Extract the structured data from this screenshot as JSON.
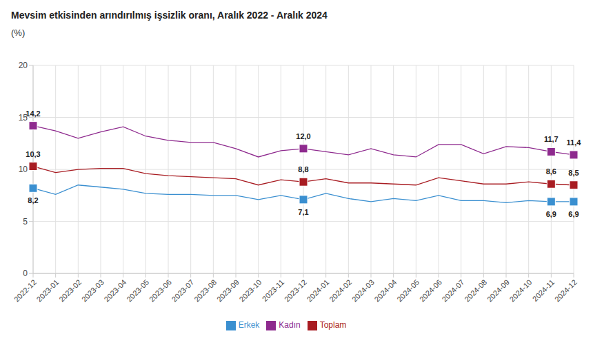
{
  "chart_data": {
    "type": "line",
    "title": "Mevsim etkisinden arındırılmış işsizlik oranı, Aralık 2022 - Aralık 2024",
    "ylabel": "(%)",
    "categories": [
      "2022-12",
      "2023-01",
      "2023-02",
      "2023-03",
      "2023-04",
      "2023-05",
      "2023-06",
      "2023-07",
      "2023-08",
      "2023-09",
      "2023-10",
      "2023-11",
      "2023-12",
      "2024-01",
      "2024-02",
      "2024-03",
      "2024-04",
      "2024-05",
      "2024-06",
      "2024-07",
      "2024-08",
      "2024-09",
      "2024-10",
      "2024-11",
      "2024-12"
    ],
    "series": [
      {
        "name": "Toplam",
        "color": "#a81c22",
        "marker": "square",
        "values": [
          10.3,
          9.7,
          10.0,
          10.1,
          10.1,
          9.6,
          9.4,
          9.3,
          9.2,
          9.1,
          8.5,
          9.0,
          8.8,
          9.1,
          8.7,
          8.7,
          8.6,
          8.5,
          9.2,
          8.9,
          8.6,
          8.6,
          8.8,
          8.6,
          8.5
        ],
        "value_labels": [
          "10,3",
          null,
          null,
          null,
          null,
          null,
          null,
          null,
          null,
          null,
          null,
          null,
          "8,8",
          null,
          null,
          null,
          null,
          null,
          null,
          null,
          null,
          null,
          null,
          "8,6",
          "8,5"
        ]
      },
      {
        "name": "Erkek",
        "color": "#3a8fd0",
        "marker": "square",
        "values": [
          8.2,
          7.6,
          8.5,
          8.3,
          8.1,
          7.7,
          7.6,
          7.6,
          7.5,
          7.5,
          7.1,
          7.5,
          7.1,
          7.7,
          7.2,
          6.9,
          7.2,
          7.0,
          7.5,
          7.0,
          7.0,
          6.8,
          7.0,
          6.9,
          6.9
        ],
        "value_labels": [
          "8,2",
          null,
          null,
          null,
          null,
          null,
          null,
          null,
          null,
          null,
          null,
          null,
          "7,1",
          null,
          null,
          null,
          null,
          null,
          null,
          null,
          null,
          null,
          null,
          "6,9",
          "6,9"
        ]
      },
      {
        "name": "Kadın",
        "color": "#8e2a8e",
        "marker": "square",
        "values": [
          14.2,
          13.7,
          13.0,
          13.6,
          14.1,
          13.2,
          12.8,
          12.6,
          12.6,
          12.0,
          11.2,
          11.8,
          12.0,
          11.7,
          11.4,
          12.0,
          11.4,
          11.2,
          12.4,
          12.4,
          11.5,
          12.2,
          12.1,
          11.7,
          11.4
        ],
        "value_labels": [
          "14,2",
          null,
          null,
          null,
          null,
          null,
          null,
          null,
          null,
          null,
          null,
          null,
          "12,0",
          null,
          null,
          null,
          null,
          null,
          null,
          null,
          null,
          null,
          null,
          "11,7",
          "11,4"
        ]
      }
    ],
    "ylim": [
      0,
      20
    ],
    "yticks": [
      0,
      5,
      10,
      15,
      20
    ],
    "grid": true,
    "legend": "bottom",
    "data_labels": true
  }
}
